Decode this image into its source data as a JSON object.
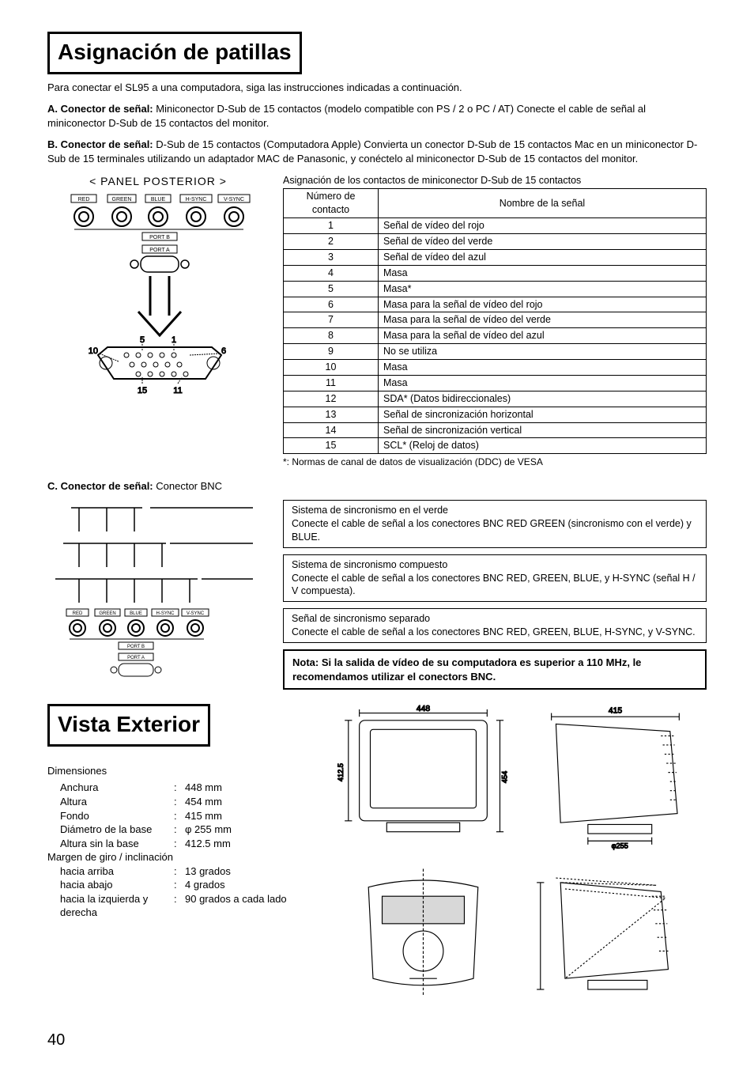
{
  "title1": "Asignación de patillas",
  "intro": "Para conectar el SL95 a una computadora, siga las instrucciones indicadas a continuación.",
  "items": {
    "a_label": "A. Conector de señal:",
    "a_text": " Miniconector D-Sub de 15 contactos (modelo compatible con PS / 2 o PC / AT) Conecte el cable de señal al miniconector D-Sub de 15 contactos del monitor.",
    "b_label": "B. Conector de señal:",
    "b_text": " D-Sub de 15 contactos (Computadora Apple) Convierta un conector D-Sub de 15 contactos Mac en un miniconector D-Sub de 15 terminales utilizando un adaptador MAC de Panasonic, y conéctelo al miniconector D-Sub de 15 contactos del monitor.",
    "c_label": "C. Conector de señal:",
    "c_text": " Conector BNC"
  },
  "panel_label": "< PANEL POSTERIOR >",
  "bnc_labels": [
    "RED",
    "GREEN",
    "BLUE",
    "H-SYNC",
    "V-SYNC"
  ],
  "port_labels": {
    "portb": "PORT B",
    "porta": "PORT A"
  },
  "dsub_pins": {
    "p5": "5",
    "p1": "1",
    "p10": "10",
    "p6": "6",
    "p15": "15",
    "p11": "11"
  },
  "pin_caption": "Asignación de los contactos de miniconector D-Sub de 15 contactos",
  "pin_table": {
    "h_num": "Número de contacto",
    "h_sig": "Nombre de la señal",
    "rows": [
      {
        "n": "1",
        "s": "Señal de vídeo del rojo"
      },
      {
        "n": "2",
        "s": "Señal de vídeo del verde"
      },
      {
        "n": "3",
        "s": "Señal de vídeo del azul"
      },
      {
        "n": "4",
        "s": "Masa"
      },
      {
        "n": "5",
        "s": "Masa*"
      },
      {
        "n": "6",
        "s": "Masa para la señal de vídeo del rojo"
      },
      {
        "n": "7",
        "s": "Masa para la señal de vídeo del verde"
      },
      {
        "n": "8",
        "s": "Masa para la señal de vídeo del azul"
      },
      {
        "n": "9",
        "s": "No se utiliza"
      },
      {
        "n": "10",
        "s": "Masa"
      },
      {
        "n": "11",
        "s": "Masa"
      },
      {
        "n": "12",
        "s": "SDA* (Datos bidireccionales)"
      },
      {
        "n": "13",
        "s": "Señal de sincronización horizontal"
      },
      {
        "n": "14",
        "s": "Señal de sincronización vertical"
      },
      {
        "n": "15",
        "s": "SCL* (Reloj de datos)"
      }
    ]
  },
  "foot_note": "*: Normas de canal de datos de visualización (DDC) de VESA",
  "sync": {
    "a_title": "Sistema de sincronismo en el verde",
    "a_body": "Conecte el cable de señal a los conectores BNC RED GREEN (sincronismo con el verde) y BLUE.",
    "b_title": "Sistema de sincronismo compuesto",
    "b_body": "Conecte el cable de señal a los conectores BNC RED, GREEN, BLUE, y H-SYNC (señal H / V compuesta).",
    "c_title": "Señal de sincronismo separado",
    "c_body": "Conecte el cable de señal a los conectores BNC RED, GREEN, BLUE, H-SYNC, y V-SYNC."
  },
  "nota": "Nota:  Si la salida de vídeo de su computadora es superior a 110 MHz, le recomendamos utilizar el conectors BNC.",
  "title2": "Vista Exterior",
  "dims": {
    "head": "Dimensiones",
    "rows": [
      {
        "k": "Anchura",
        "v": "448 mm"
      },
      {
        "k": "Altura",
        "v": "454 mm"
      },
      {
        "k": "Fondo",
        "v": "415 mm"
      },
      {
        "k": "Diámetro de la base",
        "v": "φ 255 mm"
      },
      {
        "k": "Altura sin la base",
        "v": "412.5 mm"
      }
    ],
    "tilt_head": "Margen de giro / inclinación",
    "tilt_rows": [
      {
        "k": "hacia arriba",
        "v": "13 grados"
      },
      {
        "k": "hacia abajo",
        "v": "4 grados"
      },
      {
        "k": "hacia la izquierda y derecha",
        "v": "90 grados a cada lado"
      }
    ]
  },
  "diagram_labels": {
    "front_w": "448",
    "front_h": "412.5",
    "front_total_h": "454",
    "side_d": "415",
    "base_d": "φ255"
  },
  "page": "40"
}
